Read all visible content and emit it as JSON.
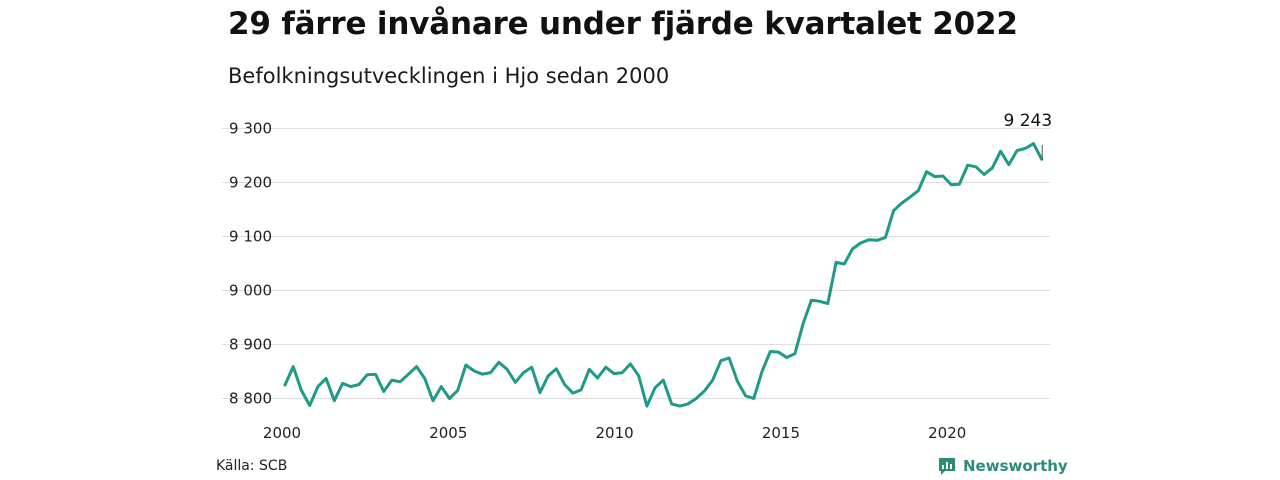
{
  "title": "29 färre invånare under fjärde kvartalet 2022",
  "subtitle": "Befolkningsutvecklingen i Hjo sedan 2000",
  "source": "Källa: SCB",
  "brand": {
    "name": "Newsworthy",
    "icon": "newsworthy-logo-icon",
    "color": "#2e8b7c"
  },
  "chart_data": {
    "type": "line",
    "title": "29 färre invånare under fjärde kvartalet 2022",
    "subtitle": "Befolkningsutvecklingen i Hjo sedan 2000",
    "xlabel": "",
    "ylabel": "",
    "xlim": [
      2000,
      2023
    ],
    "ylim": [
      8775,
      9325
    ],
    "x_ticks": [
      2000,
      2005,
      2010,
      2015,
      2020
    ],
    "x_tick_labels": [
      "2000",
      "2005",
      "2010",
      "2015",
      "2020"
    ],
    "y_ticks": [
      8800,
      8900,
      9000,
      9100,
      9200,
      9300
    ],
    "y_tick_labels": [
      "8 800",
      "8 900",
      "9 000",
      "9 100",
      "9 200",
      "9 300"
    ],
    "grid": "horizontal",
    "line_color": "#1f9a87",
    "annotation": {
      "text": "9 243",
      "x": 2022.75,
      "y": 9243
    },
    "series": [
      {
        "values": [
          8825,
          8859,
          8815,
          8787,
          8822,
          8837,
          8796,
          8828,
          8822,
          8826,
          8844,
          8845,
          8813,
          8834,
          8831,
          8845,
          8859,
          8837,
          8796,
          8822,
          8800,
          8815,
          8862,
          8851,
          8845,
          8848,
          8867,
          8854,
          8830,
          8848,
          8858,
          8811,
          8842,
          8855,
          8826,
          8810,
          8816,
          8854,
          8838,
          8858,
          8846,
          8848,
          8864,
          8842,
          8786,
          8820,
          8834,
          8790,
          8786,
          8790,
          8800,
          8814,
          8834,
          8870,
          8875,
          8832,
          8805,
          8800,
          8850,
          8887,
          8886,
          8876,
          8883,
          8939,
          8982,
          8980,
          8976,
          9052,
          9049,
          9077,
          9088,
          9094,
          9093,
          9098,
          9148,
          9162,
          9173,
          9185,
          9220,
          9211,
          9212,
          9196,
          9197,
          9232,
          9229,
          9215,
          9227,
          9258,
          9233,
          9259,
          9263,
          9272,
          9243
        ]
      }
    ]
  }
}
